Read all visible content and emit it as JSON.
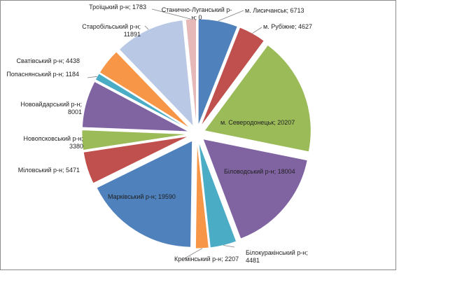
{
  "chart_data": {
    "type": "pie",
    "title": "",
    "legend": "none",
    "categories": [
      "м. Лисичанськ",
      "м. Рубіжне",
      "м. Северодонецьк",
      "Біловодський р-н",
      "Білокуракінський р-н",
      "Кремінський р-н",
      "Марківський р-н",
      "Міловський р-н",
      "Новопсковський р-н",
      "Новоайдарський р-н",
      "Попаснянський р-н",
      "Сватівський р-н",
      "Старобільський р-н",
      "Станично-Луганський р-н",
      "Троїцький р-н"
    ],
    "values": [
      6713,
      4627,
      20207,
      18004,
      4481,
      2207,
      19590,
      5471,
      3380,
      8001,
      1184,
      4438,
      11891,
      0,
      1783
    ],
    "labels": [
      [
        "м. Лисичанськ; 6713"
      ],
      [
        "м. Рубіжне; 4627"
      ],
      [
        "м. Северодонецьк;  20207"
      ],
      [
        "Біловодський р-н; 18004"
      ],
      [
        "Білокуракінський р-н;",
        "4481"
      ],
      [
        "Кремінський р-н; 2207"
      ],
      [
        "Марківський р-н; 19590"
      ],
      [
        "Міловський р-н; 5471"
      ],
      [
        "Новопсковський р-н;",
        "3380"
      ],
      [
        "Новоайдарський р-н;",
        "8001"
      ],
      [
        "Попаснянський р-н; 1184"
      ],
      [
        "Сватівський р-н; 4438"
      ],
      [
        "Старобільський р-н;",
        "11891"
      ],
      [
        "Станично-Луганський р-",
        "н; 0"
      ],
      [
        "Троїцький р-н; 1783"
      ]
    ],
    "colors": [
      "#4f81bd",
      "#c0504d",
      "#9bbb59",
      "#8064a2",
      "#4bacc6",
      "#f79646",
      "#4f81bd",
      "#c0504d",
      "#9bbb59",
      "#8064a2",
      "#4bacc6",
      "#f79646",
      "#b9c9e5",
      "#e6b9b8",
      "#e6b9b8"
    ]
  }
}
